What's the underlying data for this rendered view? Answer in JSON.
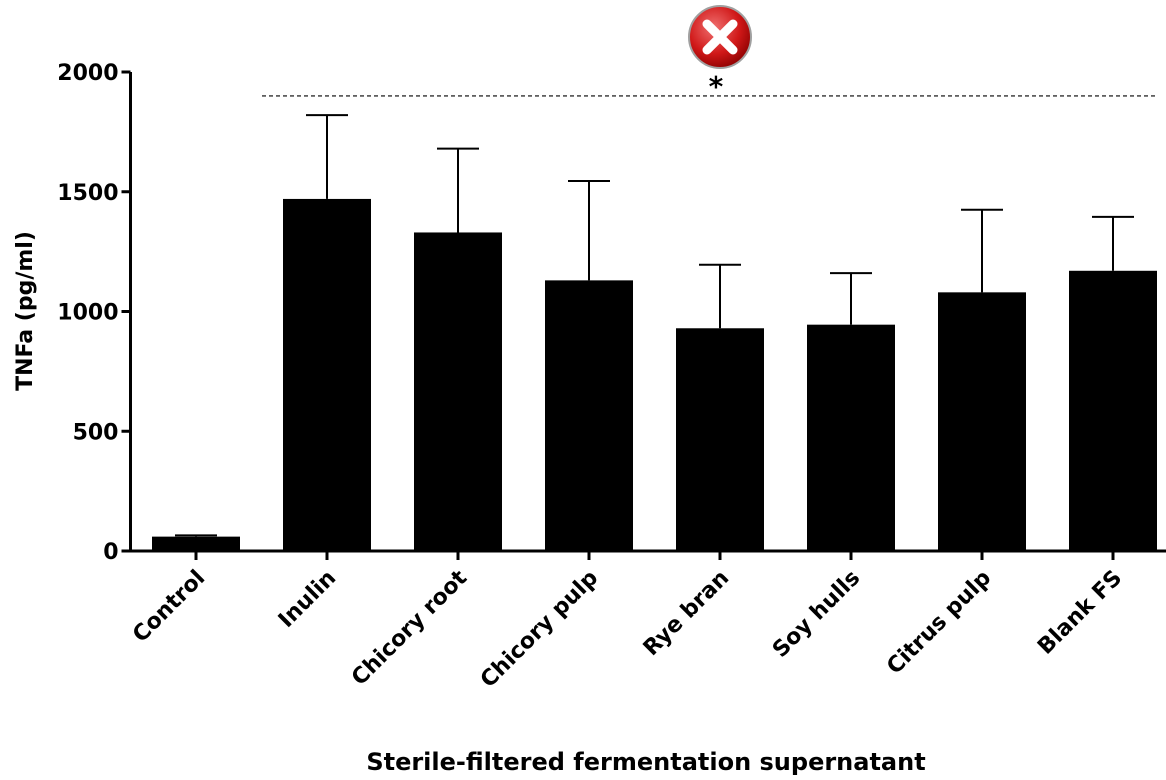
{
  "chart_data": {
    "type": "bar",
    "xlabel": "Sterile-filtered fermentation supernatant",
    "ylabel": "TNFa (pg/ml)",
    "categories": [
      "Control",
      "Inulin",
      "Chicory root",
      "Chicory pulp",
      "Rye bran",
      "Soy hulls",
      "Citrus pulp",
      "Blank FS"
    ],
    "values": [
      60,
      1470,
      1330,
      1130,
      930,
      945,
      1080,
      1170
    ],
    "errors": [
      5,
      350,
      350,
      415,
      265,
      215,
      345,
      225
    ],
    "color": "#000000",
    "ylim": [
      0,
      2000
    ],
    "yticks": [
      0,
      500,
      1000,
      1500,
      2000
    ],
    "annotations": [
      {
        "text": "*",
        "y": 1900
      }
    ]
  }
}
